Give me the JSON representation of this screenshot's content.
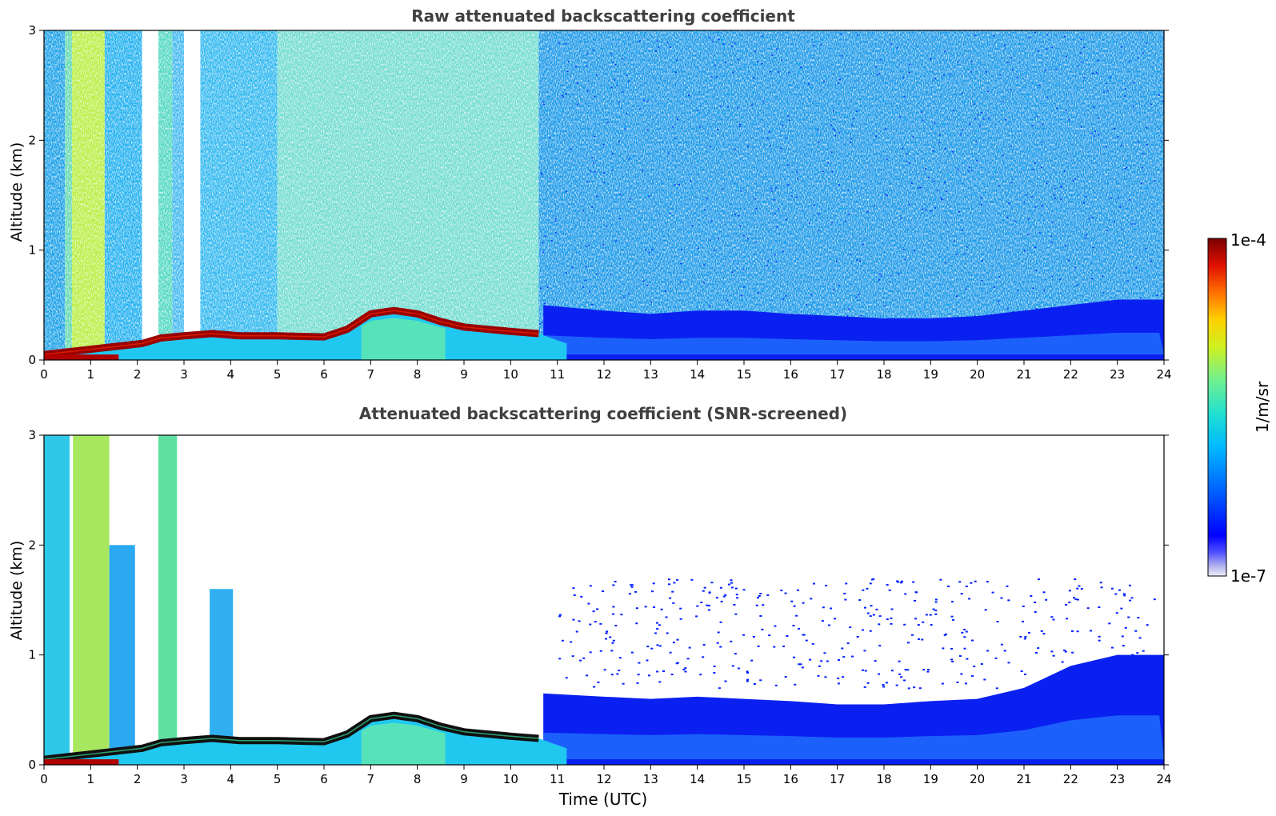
{
  "chart_data": [
    {
      "type": "heatmap",
      "title": "Raw attenuated backscattering coefficient",
      "xlabel": "",
      "ylabel": "Altitude (km)",
      "xlim": [
        0,
        24
      ],
      "ylim": [
        0,
        3
      ],
      "x_ticks": [
        "0",
        "1",
        "2",
        "3",
        "4",
        "5",
        "6",
        "7",
        "8",
        "9",
        "10",
        "11",
        "12",
        "13",
        "14",
        "15",
        "16",
        "17",
        "18",
        "19",
        "20",
        "21",
        "22",
        "23",
        "24"
      ],
      "y_ticks": [
        "0",
        "1",
        "2",
        "3"
      ],
      "screened": false,
      "boundary_layer_top_km": [
        [
          0,
          0.05
        ],
        [
          2.1,
          0.15
        ],
        [
          2.5,
          0.2
        ],
        [
          3.0,
          0.22
        ],
        [
          3.6,
          0.24
        ],
        [
          4.2,
          0.22
        ],
        [
          5,
          0.22
        ],
        [
          6,
          0.21
        ],
        [
          6.5,
          0.28
        ],
        [
          7,
          0.42
        ],
        [
          7.5,
          0.45
        ],
        [
          8,
          0.42
        ],
        [
          8.5,
          0.35
        ],
        [
          9,
          0.3
        ],
        [
          10,
          0.26
        ],
        [
          10.6,
          0.24
        ]
      ],
      "mixed_layer_top_km": [
        [
          10.7,
          0.5
        ],
        [
          12,
          0.45
        ],
        [
          13,
          0.42
        ],
        [
          14,
          0.45
        ],
        [
          15,
          0.45
        ],
        [
          16,
          0.42
        ],
        [
          17,
          0.4
        ],
        [
          18,
          0.38
        ],
        [
          19,
          0.38
        ],
        [
          20,
          0.4
        ],
        [
          21,
          0.45
        ],
        [
          22,
          0.5
        ],
        [
          23,
          0.55
        ],
        [
          23.9,
          0.55
        ]
      ]
    },
    {
      "type": "heatmap",
      "title": "Attenuated backscattering coefficient (SNR-screened)",
      "xlabel": "Time (UTC)",
      "ylabel": "Altitude (km)",
      "xlim": [
        0,
        24
      ],
      "ylim": [
        0,
        3
      ],
      "x_ticks": [
        "0",
        "1",
        "2",
        "3",
        "4",
        "5",
        "6",
        "7",
        "8",
        "9",
        "10",
        "11",
        "12",
        "13",
        "14",
        "15",
        "16",
        "17",
        "18",
        "19",
        "20",
        "21",
        "22",
        "23",
        "24"
      ],
      "y_ticks": [
        "0",
        "1",
        "2",
        "3"
      ],
      "screened": true,
      "boundary_layer_top_km": [
        [
          0,
          0.05
        ],
        [
          2.1,
          0.15
        ],
        [
          2.5,
          0.2
        ],
        [
          3.0,
          0.22
        ],
        [
          3.6,
          0.24
        ],
        [
          4.2,
          0.22
        ],
        [
          5,
          0.22
        ],
        [
          6,
          0.21
        ],
        [
          6.5,
          0.28
        ],
        [
          7,
          0.42
        ],
        [
          7.5,
          0.45
        ],
        [
          8,
          0.42
        ],
        [
          8.5,
          0.35
        ],
        [
          9,
          0.3
        ],
        [
          10,
          0.26
        ],
        [
          10.6,
          0.24
        ]
      ],
      "mixed_layer_top_km": [
        [
          10.7,
          0.65
        ],
        [
          12,
          0.62
        ],
        [
          13,
          0.6
        ],
        [
          14,
          0.62
        ],
        [
          15,
          0.6
        ],
        [
          16,
          0.58
        ],
        [
          17,
          0.55
        ],
        [
          18,
          0.55
        ],
        [
          19,
          0.58
        ],
        [
          20,
          0.6
        ],
        [
          21,
          0.7
        ],
        [
          22,
          0.9
        ],
        [
          23,
          1.0
        ],
        [
          23.9,
          1.0
        ]
      ]
    }
  ],
  "colorbar": {
    "label": "1/m/sr",
    "max_label": "1e-4",
    "min_label": "1e-7",
    "scale": "log",
    "colors": [
      "#e8e8f8",
      "#aaaaee",
      "#0000ff",
      "#0088ff",
      "#00ccff",
      "#30e0c0",
      "#80f080",
      "#e0f020",
      "#ffc000",
      "#ff6000",
      "#e00000",
      "#800000"
    ]
  }
}
